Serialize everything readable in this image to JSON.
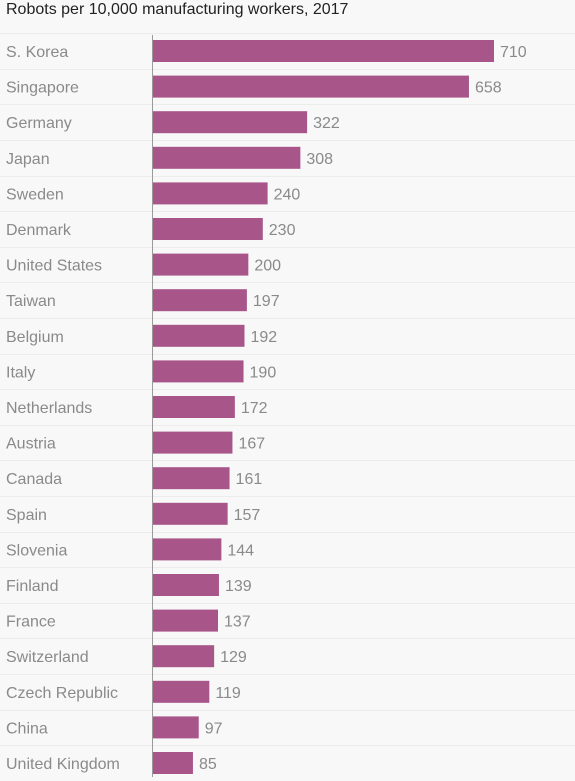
{
  "chart_data": {
    "type": "bar",
    "orientation": "horizontal",
    "title": "Robots per 10,000 manufacturing workers, 2017",
    "xlabel": "",
    "ylabel": "",
    "xlim": [
      0,
      710
    ],
    "grid": false,
    "bar_color": "#a8558a",
    "categories": [
      "S. Korea",
      "Singapore",
      "Germany",
      "Japan",
      "Sweden",
      "Denmark",
      "United States",
      "Taiwan",
      "Belgium",
      "Italy",
      "Netherlands",
      "Austria",
      "Canada",
      "Spain",
      "Slovenia",
      "Finland",
      "France",
      "Switzerland",
      "Czech Republic",
      "China",
      "United Kingdom"
    ],
    "values": [
      710,
      658,
      322,
      308,
      240,
      230,
      200,
      197,
      192,
      190,
      172,
      167,
      161,
      157,
      144,
      139,
      137,
      129,
      119,
      97,
      85
    ]
  }
}
